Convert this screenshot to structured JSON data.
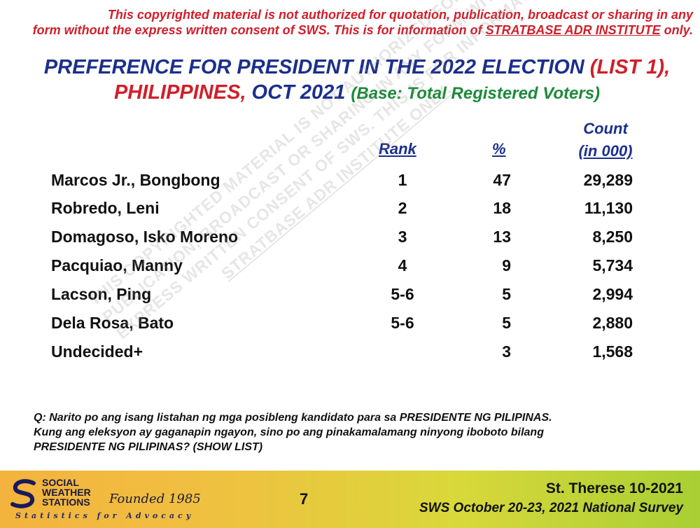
{
  "notice": {
    "line1": "This copyrighted material is not authorized for quotation, publication, broadcast or sharing in any",
    "line2_pre": "form without the express written consent of SWS. This is for information of ",
    "line2_link": "STRATBASE ADR INSTITUTE",
    "line2_post": " only."
  },
  "title": {
    "line1_main": "PREFERENCE FOR PRESIDENT IN THE 2022 ELECTION ",
    "line1_red": "(LIST 1),",
    "line2_red": "PHILIPPINES,",
    "line2_main": " OCT 2021 ",
    "line2_base": "(Base: Total Registered Voters)"
  },
  "table": {
    "headers": {
      "rank": "Rank",
      "pct": "%",
      "count_line1": "Count",
      "count_line2": "(in 000)"
    },
    "rows": [
      {
        "name": "Marcos Jr., Bongbong",
        "rank": "1",
        "pct": "47",
        "count": "29,289"
      },
      {
        "name": "Robredo, Leni",
        "rank": "2",
        "pct": "18",
        "count": "11,130"
      },
      {
        "name": "Domagoso, Isko Moreno",
        "rank": "3",
        "pct": "13",
        "count": "8,250"
      },
      {
        "name": "Pacquiao, Manny",
        "rank": "4",
        "pct": "9",
        "count": "5,734"
      },
      {
        "name": "Lacson, Ping",
        "rank": "5-6",
        "pct": "5",
        "count": "2,994"
      },
      {
        "name": "Dela Rosa, Bato",
        "rank": "5-6",
        "pct": "5",
        "count": "2,880"
      },
      {
        "name": "Undecided+",
        "rank": "",
        "pct": "3",
        "count": "1,568"
      }
    ]
  },
  "question": {
    "line1": "Q: Narito po ang isang listahan ng mga posibleng kandidato para sa PRESIDENTE NG PILIPINAS.",
    "line2": "Kung ang eleksyon ay gaganapin ngayon, sino po ang pinakamalamang ninyong iboboto bilang",
    "line3": "PRESIDENTE NG PILIPINAS? (SHOW LIST)"
  },
  "watermark": {
    "line1": "THIS COPYRIGHTED MATERIAL IS NOT AUTHORIZED FOR QUOTATION,",
    "line2": "PUBLICATION, BROADCAST OR SHARING IN ANY FORM WITHOUT THE",
    "line3": "EXPRESS WRITTEN CONSENT OF SWS. THIS IS FOR INFORMATION OF",
    "line4": "STRATBASE ADR INSTITUTE ONLY."
  },
  "footer": {
    "logo_line1": "SOCIAL",
    "logo_line2": "WEATHER",
    "logo_line3": "STATIONS",
    "founded": "Founded 1985",
    "tagline": "Statistics for Advocacy",
    "page_number": "7",
    "slide_id": "St. Therese 10-2021",
    "survey": "SWS October 20-23, 2021 National Survey"
  },
  "colors": {
    "title_blue": "#1b2f8c",
    "accent_red": "#d01f2a",
    "base_green": "#1d8a3a"
  }
}
